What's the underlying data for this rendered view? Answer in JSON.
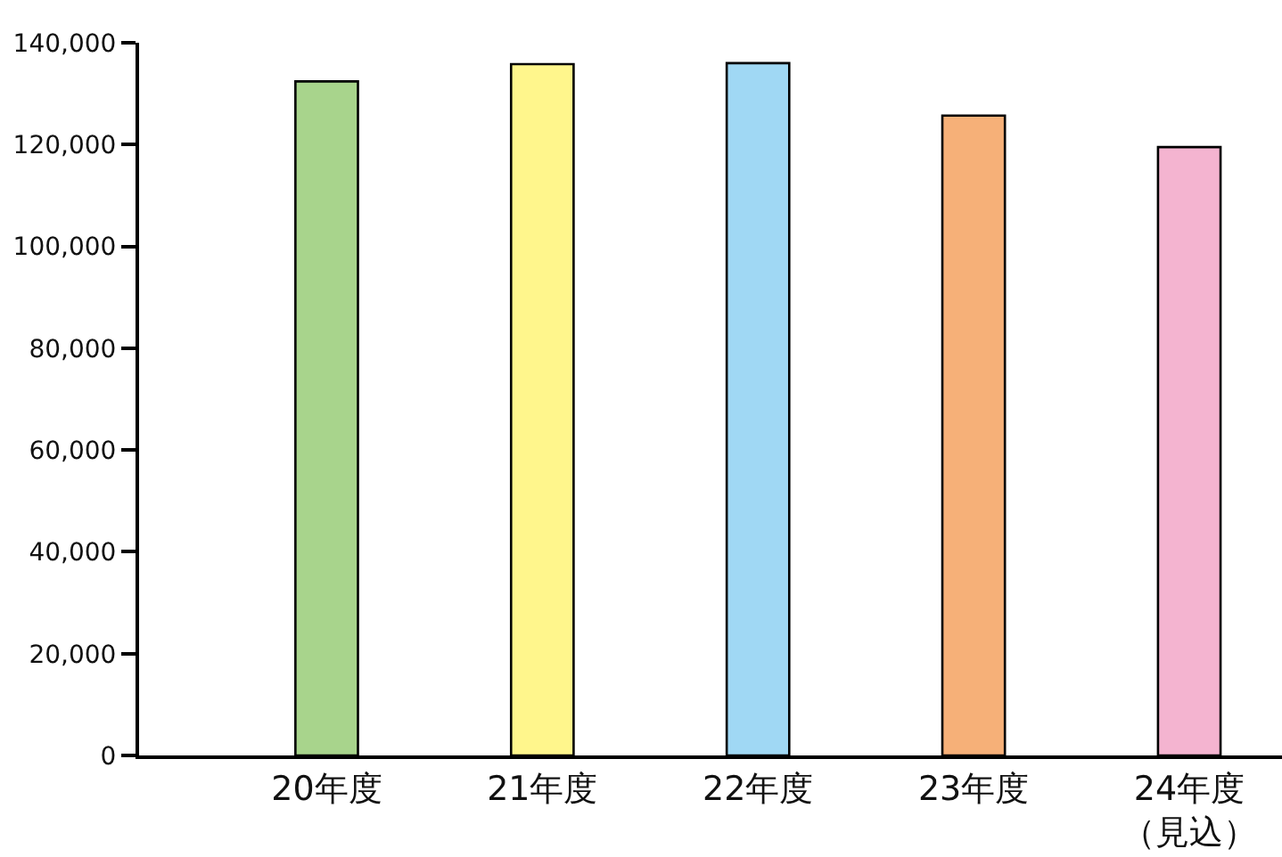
{
  "chart_data": {
    "type": "bar",
    "categories": [
      "20年度",
      "21年度",
      "22年度",
      "23年度",
      "24年度（見込）"
    ],
    "values": [
      132400,
      135800,
      136000,
      125700,
      119500
    ],
    "colors": [
      "#a8d48c",
      "#fff68c",
      "#a0d8f4",
      "#f6b078",
      "#f4b4d0"
    ],
    "ylim": [
      0,
      140000
    ],
    "yticks": [
      0,
      {
        "value": 20000,
        "label": "20,000"
      },
      {
        "value": 40000,
        "label": "40,000"
      },
      {
        "value": 60000,
        "label": "60,000"
      },
      {
        "value": 80000,
        "label": "80,000"
      },
      {
        "value": 100000,
        "label": "100,000"
      },
      {
        "value": 120000,
        "label": "120,000"
      },
      {
        "value": 140000,
        "label": "140,000"
      }
    ],
    "legend": false
  }
}
